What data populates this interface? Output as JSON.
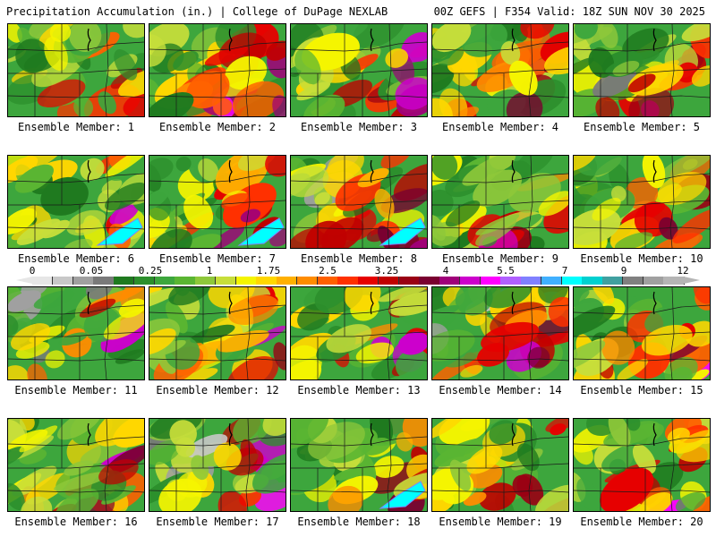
{
  "header": {
    "title_left": "Precipitation Accumulation (in.) | College of DuPage NEXLAB",
    "title_right": "00Z GEFS | F354 Valid: 18Z SUN NOV 30 2025"
  },
  "colorbar": {
    "ticks": [
      "0",
      "0.05",
      "0.25",
      "1",
      "1.75",
      "2.5",
      "3.25",
      "4",
      "5.5",
      "7",
      "9",
      "12"
    ],
    "colors": [
      "#e6e6e6",
      "#c8c8c8",
      "#a0a0a0",
      "#7a7a7a",
      "#1f7a1f",
      "#2c8f2c",
      "#3da63d",
      "#5ab532",
      "#8ec83a",
      "#c7de3a",
      "#f5f500",
      "#ffd700",
      "#ffb000",
      "#ff8c00",
      "#ff6000",
      "#ff3000",
      "#e60000",
      "#c00000",
      "#9a0014",
      "#7a0030",
      "#a0007a",
      "#cc00cc",
      "#ff00ff",
      "#b060ff",
      "#8080ff",
      "#40b0ff",
      "#00ffff",
      "#00d0d0",
      "#40a0a0",
      "#808080",
      "#a0a0a0",
      "#b5b5b5"
    ]
  },
  "panels": [
    {
      "label": "Ensemble Member: 1",
      "mood": 0
    },
    {
      "label": "Ensemble Member: 2",
      "mood": 1
    },
    {
      "label": "Ensemble Member: 3",
      "mood": 2
    },
    {
      "label": "Ensemble Member: 4",
      "mood": 3
    },
    {
      "label": "Ensemble Member: 5",
      "mood": 4
    },
    {
      "label": "Ensemble Member: 6",
      "mood": 5
    },
    {
      "label": "Ensemble Member: 7",
      "mood": 6
    },
    {
      "label": "Ensemble Member: 8",
      "mood": 7
    },
    {
      "label": "Ensemble Member: 9",
      "mood": 8
    },
    {
      "label": "Ensemble Member: 10",
      "mood": 9
    },
    {
      "label": "Ensemble Member: 11",
      "mood": 10
    },
    {
      "label": "Ensemble Member: 12",
      "mood": 11
    },
    {
      "label": "Ensemble Member: 13",
      "mood": 12
    },
    {
      "label": "Ensemble Member: 14",
      "mood": 13
    },
    {
      "label": "Ensemble Member: 15",
      "mood": 14
    },
    {
      "label": "Ensemble Member: 16",
      "mood": 15
    },
    {
      "label": "Ensemble Member: 17",
      "mood": 16
    },
    {
      "label": "Ensemble Member: 18",
      "mood": 17
    },
    {
      "label": "Ensemble Member: 19",
      "mood": 18
    },
    {
      "label": "Ensemble Member: 20",
      "mood": 19
    }
  ]
}
